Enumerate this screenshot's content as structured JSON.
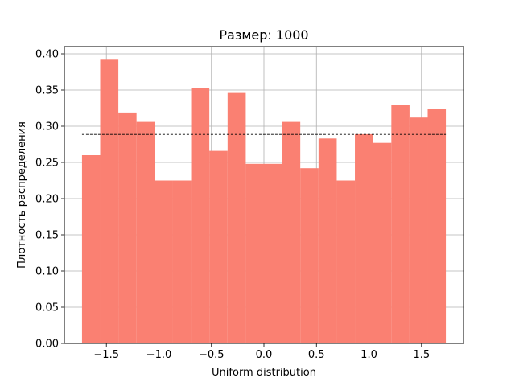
{
  "chart_data": {
    "type": "bar",
    "title": "Размер: 1000",
    "xlabel": "Uniform distribution",
    "ylabel": "Плотность распределения",
    "xlim": [
      -1.9,
      1.9
    ],
    "ylim": [
      0.0,
      0.41
    ],
    "grid": true,
    "bar_color": "#fa8072",
    "bin_edges": [
      -1.732,
      -1.559,
      -1.386,
      -1.213,
      -1.039,
      -0.866,
      -0.693,
      -0.52,
      -0.346,
      -0.173,
      0.0,
      0.173,
      0.346,
      0.52,
      0.693,
      0.866,
      1.039,
      1.213,
      1.386,
      1.559,
      1.732
    ],
    "values": [
      0.26,
      0.393,
      0.319,
      0.306,
      0.225,
      0.225,
      0.353,
      0.266,
      0.346,
      0.248,
      0.248,
      0.306,
      0.242,
      0.283,
      0.225,
      0.289,
      0.277,
      0.33,
      0.312,
      0.324
    ],
    "reference_line": {
      "y": 0.2887,
      "x_start": -1.732,
      "x_end": 1.732,
      "style": "dashed",
      "color": "#000000"
    },
    "xticks": [
      -1.5,
      -1.0,
      -0.5,
      0.0,
      0.5,
      1.0,
      1.5
    ],
    "xtick_labels": [
      "−1.5",
      "−1.0",
      "−0.5",
      "0.0",
      "0.5",
      "1.0",
      "1.5"
    ],
    "yticks": [
      0.0,
      0.05,
      0.1,
      0.15,
      0.2,
      0.25,
      0.3,
      0.35,
      0.4
    ],
    "ytick_labels": [
      "0.00",
      "0.05",
      "0.10",
      "0.15",
      "0.20",
      "0.25",
      "0.30",
      "0.35",
      "0.40"
    ]
  }
}
